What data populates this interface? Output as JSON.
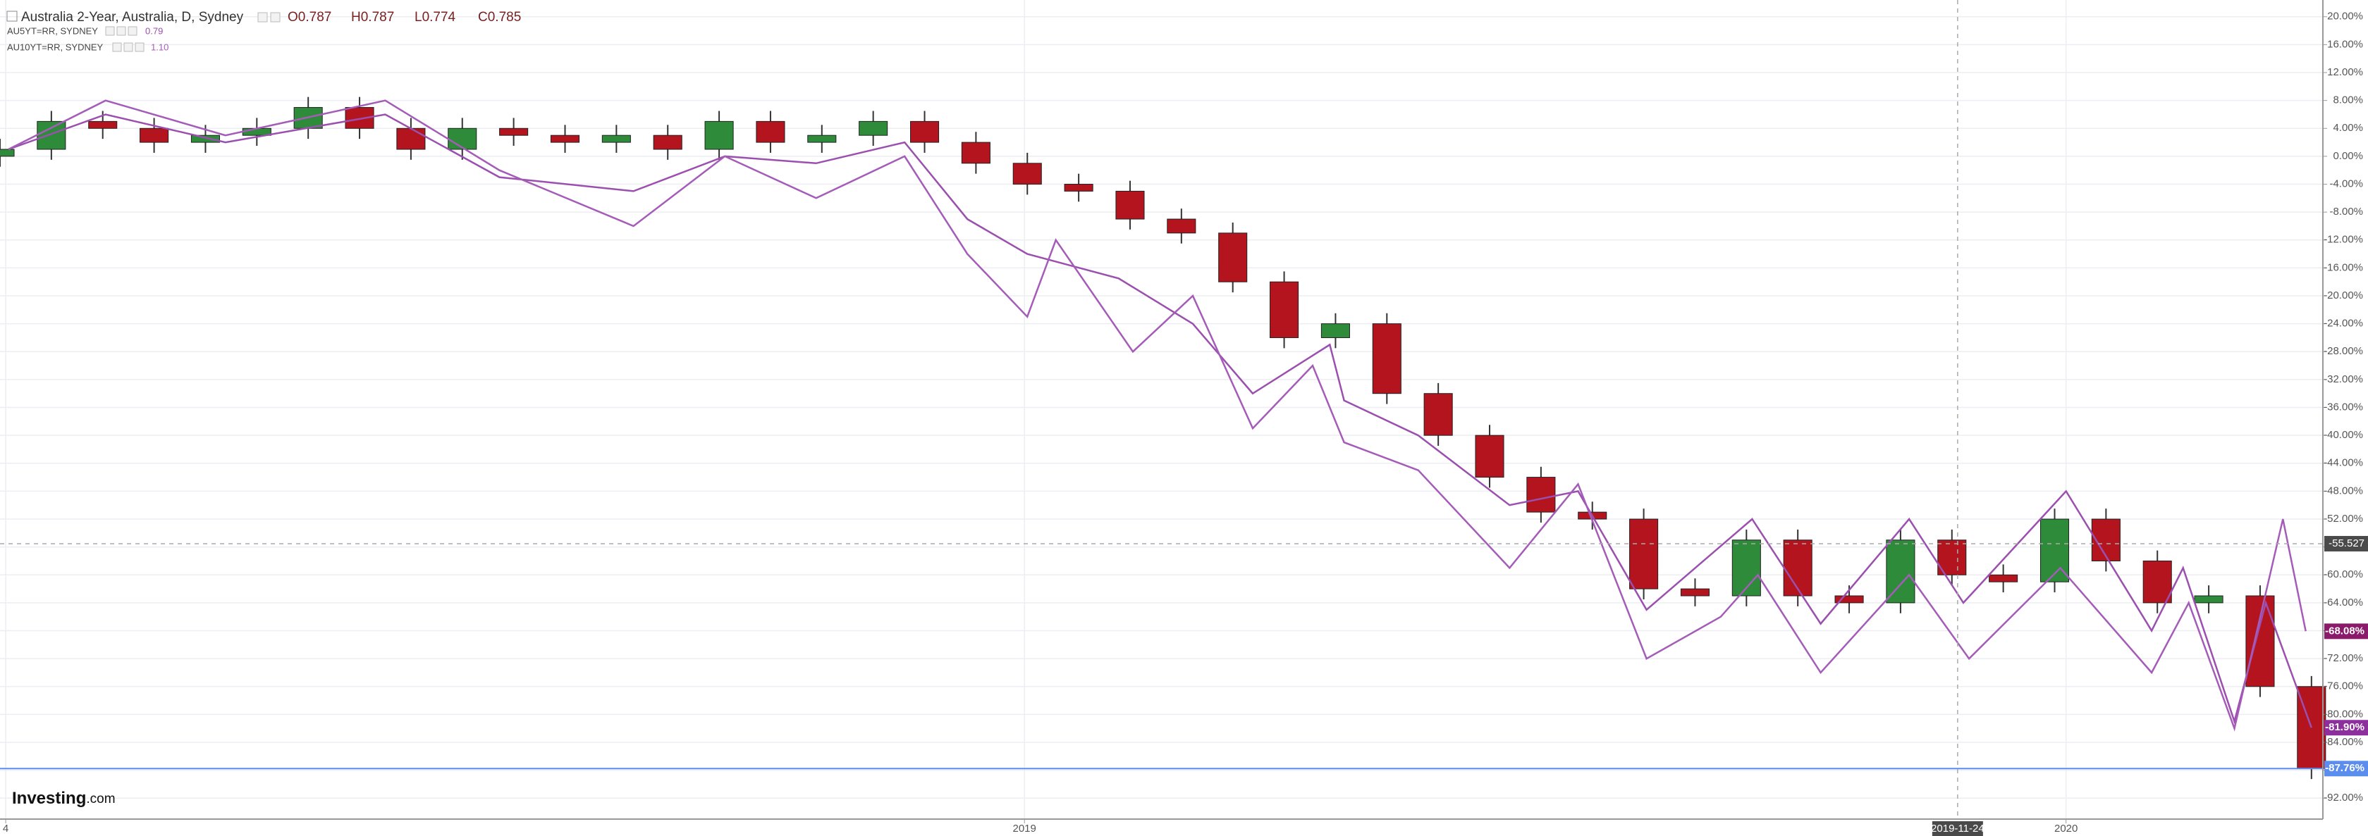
{
  "chart_data": {
    "type": "candlestick",
    "header": {
      "title": "Australia 2-Year, Australia, D, Sydney",
      "ohlc": [
        "O0.787",
        "H0.787",
        "L0.774",
        "C0.785"
      ]
    },
    "logo": [
      "Investing",
      ".com"
    ],
    "xlim": [
      0,
      814
    ],
    "xticks": [
      {
        "value": 2,
        "label": "4"
      },
      {
        "value": 359,
        "label": "2019"
      },
      {
        "value": 724,
        "label": "2020"
      }
    ],
    "ylim": [
      -95,
      22.4
    ],
    "yticks": [
      {
        "value": 20,
        "label": "20.00%"
      },
      {
        "value": 16,
        "label": "16.00%"
      },
      {
        "value": 12,
        "label": "12.00%"
      },
      {
        "value": 8,
        "label": "8.00%"
      },
      {
        "value": 4,
        "label": "4.00%"
      },
      {
        "value": 0,
        "label": "0.00%"
      },
      {
        "value": -4,
        "label": "-4.00%"
      },
      {
        "value": -8,
        "label": "-8.00%"
      },
      {
        "value": -12,
        "label": "-12.00%"
      },
      {
        "value": -16,
        "label": "-16.00%"
      },
      {
        "value": -20,
        "label": "-20.00%"
      },
      {
        "value": -24,
        "label": "-24.00%"
      },
      {
        "value": -28,
        "label": "-28.00%"
      },
      {
        "value": -32,
        "label": "-32.00%"
      },
      {
        "value": -36,
        "label": "-36.00%"
      },
      {
        "value": -40,
        "label": "-40.00%"
      },
      {
        "value": -44,
        "label": "-44.00%"
      },
      {
        "value": -48,
        "label": "-48.00%"
      },
      {
        "value": -52,
        "label": "-52.00%"
      },
      {
        "value": -56,
        "label": "-56.00%"
      },
      {
        "value": -60,
        "label": "-60.00%"
      },
      {
        "value": -64,
        "label": "-64.00%"
      },
      {
        "value": -68,
        "label": "-68.00%"
      },
      {
        "value": -72,
        "label": "-72.00%"
      },
      {
        "value": -76,
        "label": "-76.00%"
      },
      {
        "value": -80,
        "label": "-80.00%"
      },
      {
        "value": -84,
        "label": "-84.00%"
      },
      {
        "value": -88,
        "label": "-88.00%"
      },
      {
        "value": -92,
        "label": "-92.00%"
      }
    ],
    "grid": true,
    "crosshair": {
      "x": {
        "value": 686,
        "label": "2019-11-24"
      },
      "y": {
        "value": -55.527,
        "label": "-55.527"
      }
    },
    "candles": {
      "up_color": "#2e8b3a",
      "down_color": "#b3141e",
      "last_value": {
        "value": -87.76,
        "label": "-87.76%"
      },
      "last_color": "#5b8def",
      "x": [
        0,
        18,
        36,
        54,
        72,
        90,
        108,
        126,
        144,
        162,
        180,
        198,
        216,
        234,
        252,
        270,
        288,
        306,
        324,
        342,
        360,
        378,
        396,
        414,
        432,
        450,
        468,
        486,
        504,
        522,
        540,
        558,
        576,
        594,
        612,
        630,
        648,
        666,
        684,
        702,
        720,
        738,
        756,
        774,
        792,
        810
      ],
      "open": [
        0,
        1,
        5,
        4,
        2,
        3,
        4,
        7,
        4,
        1,
        4,
        3,
        2,
        3,
        1,
        5,
        2,
        3,
        5,
        2,
        -1,
        -4,
        -5,
        -9,
        -11,
        -18,
        -26,
        -24,
        -34,
        -40,
        -46,
        -51,
        -52,
        -62,
        -63,
        -55,
        -63,
        -64,
        -55,
        -60,
        -61,
        -52,
        -58,
        -64,
        -63,
        -76
      ],
      "high": [
        2.5,
        6.5,
        6.5,
        5.5,
        4.5,
        5.5,
        8.5,
        8.5,
        5.5,
        5.5,
        5.5,
        4.5,
        4.5,
        4.5,
        6.5,
        6.5,
        4.5,
        6.5,
        6.5,
        3.5,
        0.5,
        -2.5,
        -3.5,
        -7.5,
        -9.5,
        -16.5,
        -22.5,
        -22.5,
        -32.5,
        -38.5,
        -44.5,
        -49.5,
        -50.5,
        -60.5,
        -53.5,
        -53.5,
        -61.5,
        -53.5,
        -53.5,
        -58.5,
        -50.5,
        -50.5,
        -56.5,
        -61.5,
        -61.5,
        -74.5
      ],
      "low": [
        -1.5,
        -0.5,
        2.5,
        0.5,
        0.5,
        1.5,
        2.5,
        2.5,
        -0.5,
        -0.5,
        1.5,
        0.5,
        0.5,
        -0.5,
        -0.5,
        0.5,
        0.5,
        1.5,
        0.5,
        -2.5,
        -5.5,
        -6.5,
        -10.5,
        -12.5,
        -19.5,
        -27.5,
        -27.5,
        -35.5,
        -41.5,
        -47.5,
        -52.5,
        -53.5,
        -63.5,
        -64.5,
        -64.5,
        -64.5,
        -65.5,
        -65.5,
        -61.5,
        -62.5,
        -62.5,
        -59.5,
        -65.5,
        -65.5,
        -77.5,
        -89.26
      ],
      "close": [
        1,
        5,
        4,
        2,
        3,
        4,
        7,
        4,
        1,
        4,
        3,
        2,
        3,
        1,
        5,
        2,
        3,
        5,
        2,
        -1,
        -4,
        -5,
        -9,
        -11,
        -18,
        -26,
        -24,
        -34,
        -40,
        -46,
        -51,
        -52,
        -62,
        -63,
        -55,
        -63,
        -64,
        -55,
        -60,
        -61,
        -52,
        -58,
        -64,
        -63,
        -76,
        -87.76
      ]
    },
    "series": [
      {
        "name": "AU5YT=RR, SYDNEY",
        "legend_value": "0.79",
        "color": "#9b4fae",
        "badge_color": "#8e2f9e",
        "last_value": {
          "value": -81.9,
          "label": "-81.90%"
        },
        "x": [
          3,
          37,
          79,
          135,
          175,
          222,
          254,
          286,
          317,
          339,
          360,
          392,
          418,
          439,
          466,
          471,
          497,
          529,
          553,
          577,
          614,
          638,
          669,
          688,
          724,
          754,
          765,
          783,
          794,
          810
        ],
        "values": [
          1,
          6,
          2,
          6,
          -3,
          -5,
          0,
          -1,
          2,
          -9,
          -14,
          -17.5,
          -24,
          -34,
          -27,
          -35,
          -40,
          -50,
          -48,
          -65,
          -52,
          -67,
          -52,
          -64,
          -48,
          -68,
          -59,
          -81,
          -64,
          -81.9
        ]
      },
      {
        "name": "AU10YT=RR, SYDNEY",
        "legend_value": "1.10",
        "color": "#a45cb8",
        "badge_color": "#8b1a6b",
        "last_value": {
          "value": -68.08,
          "label": "-68.08%"
        },
        "x": [
          3,
          37,
          79,
          135,
          175,
          222,
          254,
          286,
          317,
          339,
          360,
          370,
          397,
          418,
          439,
          460,
          471,
          497,
          529,
          553,
          577,
          603,
          616,
          638,
          669,
          690,
          722,
          754,
          767,
          783,
          800,
          808
        ],
        "values": [
          1,
          8,
          3,
          8,
          -2,
          -10,
          0,
          -6,
          0,
          -14,
          -23,
          -12,
          -28,
          -20,
          -39,
          -30,
          -41,
          -45,
          -59,
          -47,
          -72,
          -66,
          -60,
          -74,
          -60,
          -72,
          -59,
          -74,
          -64,
          -82,
          -52,
          -68.08
        ]
      }
    ]
  }
}
